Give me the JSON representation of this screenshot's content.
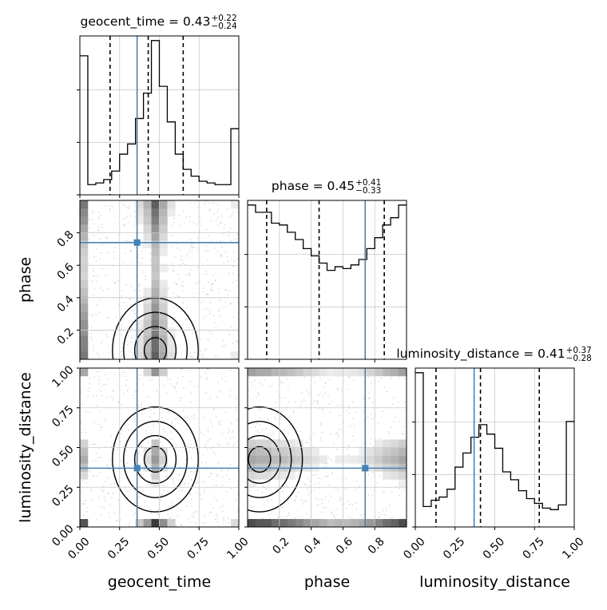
{
  "chart_data": {
    "type": "corner",
    "parameters": [
      "geocent_time",
      "phase",
      "luminosity_distance"
    ],
    "truth": {
      "geocent_time": 0.36,
      "phase": 0.74,
      "luminosity_distance": 0.37
    },
    "marginals": [
      {
        "parameter": "geocent_time",
        "title": {
          "name": "geocent_time",
          "value": "0.43",
          "plus": "+0.22",
          "minus": "−0.24"
        },
        "xlim": [
          0,
          1
        ],
        "quantiles": [
          0.19,
          0.43,
          0.65
        ],
        "bin_edges": [
          0,
          0.05,
          0.1,
          0.15,
          0.2,
          0.25,
          0.3,
          0.35,
          0.4,
          0.45,
          0.5,
          0.55,
          0.6,
          0.65,
          0.7,
          0.75,
          0.8,
          0.85,
          0.9,
          0.95,
          1.0
        ],
        "counts": [
          0.82,
          0.06,
          0.07,
          0.09,
          0.14,
          0.24,
          0.3,
          0.45,
          0.6,
          0.91,
          0.64,
          0.43,
          0.24,
          0.15,
          0.11,
          0.08,
          0.07,
          0.06,
          0.06,
          0.39
        ]
      },
      {
        "parameter": "phase",
        "title": {
          "name": "phase",
          "value": "0.45",
          "plus": "+0.41",
          "minus": "−0.33"
        },
        "xlim": [
          0,
          1
        ],
        "quantiles": [
          0.12,
          0.45,
          0.86
        ],
        "bin_edges": [
          0,
          0.05,
          0.1,
          0.15,
          0.2,
          0.25,
          0.3,
          0.35,
          0.4,
          0.45,
          0.5,
          0.55,
          0.6,
          0.65,
          0.7,
          0.75,
          0.8,
          0.85,
          0.9,
          0.95,
          1.0
        ],
        "counts": [
          0.85,
          0.81,
          0.81,
          0.75,
          0.74,
          0.7,
          0.66,
          0.61,
          0.57,
          0.53,
          0.49,
          0.51,
          0.5,
          0.52,
          0.55,
          0.61,
          0.67,
          0.74,
          0.78,
          0.85
        ]
      },
      {
        "parameter": "luminosity_distance",
        "title": {
          "name": "luminosity_distance",
          "value": "0.41",
          "plus": "+0.37",
          "minus": "−0.28"
        },
        "xlim": [
          0,
          1
        ],
        "quantiles": [
          0.13,
          0.41,
          0.78
        ],
        "bin_edges": [
          0,
          0.05,
          0.1,
          0.15,
          0.2,
          0.25,
          0.3,
          0.35,
          0.4,
          0.45,
          0.5,
          0.55,
          0.6,
          0.65,
          0.7,
          0.75,
          0.8,
          0.85,
          0.9,
          0.95,
          1.0
        ],
        "counts": [
          0.98,
          0.13,
          0.17,
          0.19,
          0.24,
          0.38,
          0.47,
          0.57,
          0.65,
          0.59,
          0.5,
          0.35,
          0.3,
          0.23,
          0.18,
          0.15,
          0.12,
          0.11,
          0.14,
          0.67
        ]
      }
    ],
    "pairs": [
      {
        "x": "geocent_time",
        "y": "phase",
        "xlim": [
          0,
          1
        ],
        "ylim": [
          0.02,
          1.0
        ]
      },
      {
        "x": "geocent_time",
        "y": "luminosity_distance",
        "xlim": [
          0,
          1
        ],
        "ylim": [
          0,
          1
        ]
      },
      {
        "x": "phase",
        "y": "luminosity_distance",
        "xlim": [
          0,
          1
        ],
        "ylim": [
          0,
          1
        ]
      }
    ],
    "axes": {
      "geocent_time": {
        "ticks": [
          0,
          0.25,
          0.5,
          0.75,
          1.0
        ],
        "tick_labels": [
          "0.00",
          "0.25",
          "0.50",
          "0.75",
          "1.00"
        ],
        "xlabel": "geocent_time"
      },
      "phase": {
        "ticks": [
          0.2,
          0.4,
          0.6,
          0.8
        ],
        "tick_labels": [
          "0.2",
          "0.4",
          "0.6",
          "0.8"
        ],
        "xlabel": "phase",
        "ylabel": "phase"
      },
      "luminosity_distance": {
        "ticks": [
          0,
          0.25,
          0.5,
          0.75,
          1.0
        ],
        "tick_labels": [
          "0.00",
          "0.25",
          "0.50",
          "0.75",
          "1.00"
        ],
        "xlabel": "luminosity_distance",
        "ylabel": "luminosity_distance"
      }
    },
    "grid": true,
    "colors": {
      "truth": "#4682b4",
      "histogram": "#000000",
      "quantile": "#000000",
      "grid": "#c8c8c8"
    }
  }
}
